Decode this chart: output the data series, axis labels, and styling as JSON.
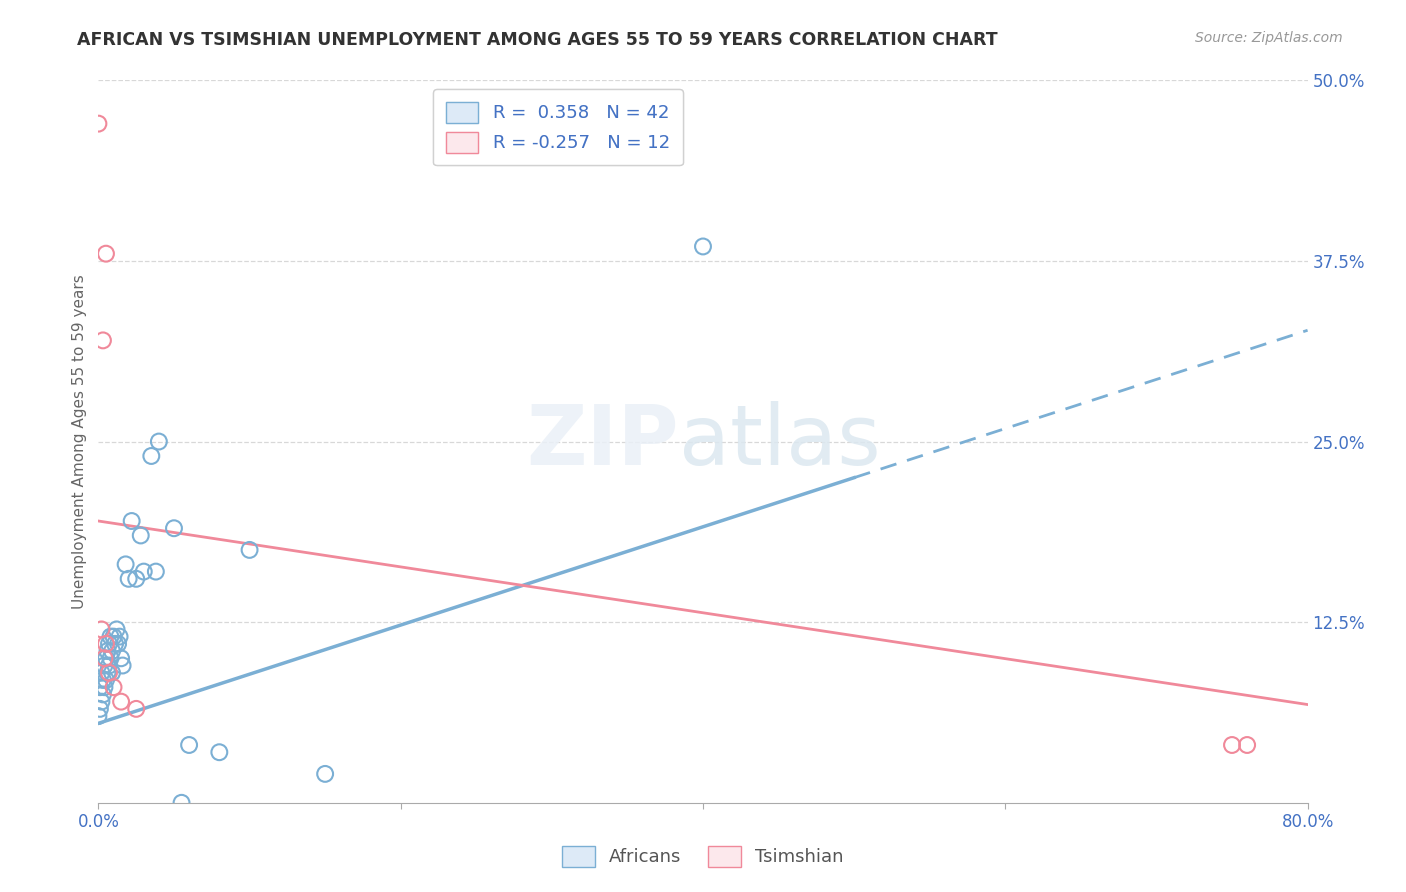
{
  "title": "AFRICAN VS TSIMSHIAN UNEMPLOYMENT AMONG AGES 55 TO 59 YEARS CORRELATION CHART",
  "source": "Source: ZipAtlas.com",
  "ylabel": "Unemployment Among Ages 55 to 59 years",
  "xlim": [
    0.0,
    0.8
  ],
  "ylim": [
    0.0,
    0.5
  ],
  "xticks": [
    0.0,
    0.2,
    0.4,
    0.6,
    0.8
  ],
  "yticks": [
    0.0,
    0.125,
    0.25,
    0.375,
    0.5
  ],
  "ytick_labels": [
    "",
    "12.5%",
    "25.0%",
    "37.5%",
    "50.0%"
  ],
  "xtick_labels": [
    "0.0%",
    "",
    "",
    "",
    "80.0%"
  ],
  "background_color": "#ffffff",
  "grid_color": "#d8d8d8",
  "african_color": "#7bafd4",
  "tsimshian_color": "#f0899a",
  "african_R": 0.358,
  "african_N": 42,
  "tsimshian_R": -0.257,
  "tsimshian_N": 12,
  "africans_x": [
    0.0,
    0.001,
    0.001,
    0.002,
    0.002,
    0.003,
    0.003,
    0.004,
    0.004,
    0.005,
    0.005,
    0.006,
    0.006,
    0.007,
    0.007,
    0.008,
    0.008,
    0.009,
    0.009,
    0.01,
    0.011,
    0.012,
    0.013,
    0.014,
    0.015,
    0.016,
    0.018,
    0.02,
    0.022,
    0.025,
    0.028,
    0.03,
    0.035,
    0.038,
    0.04,
    0.05,
    0.055,
    0.06,
    0.08,
    0.1,
    0.15,
    0.4
  ],
  "africans_y": [
    0.06,
    0.065,
    0.08,
    0.07,
    0.09,
    0.085,
    0.075,
    0.08,
    0.095,
    0.085,
    0.1,
    0.09,
    0.105,
    0.095,
    0.11,
    0.1,
    0.115,
    0.09,
    0.105,
    0.115,
    0.11,
    0.12,
    0.11,
    0.115,
    0.1,
    0.095,
    0.165,
    0.155,
    0.195,
    0.155,
    0.185,
    0.16,
    0.24,
    0.16,
    0.25,
    0.19,
    0.0,
    0.04,
    0.035,
    0.175,
    0.02,
    0.385
  ],
  "tsimshian_x": [
    0.0,
    0.002,
    0.003,
    0.004,
    0.005,
    0.005,
    0.007,
    0.01,
    0.015,
    0.025,
    0.75,
    0.76
  ],
  "tsimshian_y": [
    0.47,
    0.12,
    0.32,
    0.1,
    0.11,
    0.38,
    0.09,
    0.08,
    0.07,
    0.065,
    0.04,
    0.04
  ],
  "af_line_x": [
    0.0,
    0.5,
    0.8
  ],
  "af_line_y_intercept": 0.055,
  "af_line_slope": 0.34,
  "ts_line_y_start": 0.195,
  "ts_line_y_end": 0.068
}
